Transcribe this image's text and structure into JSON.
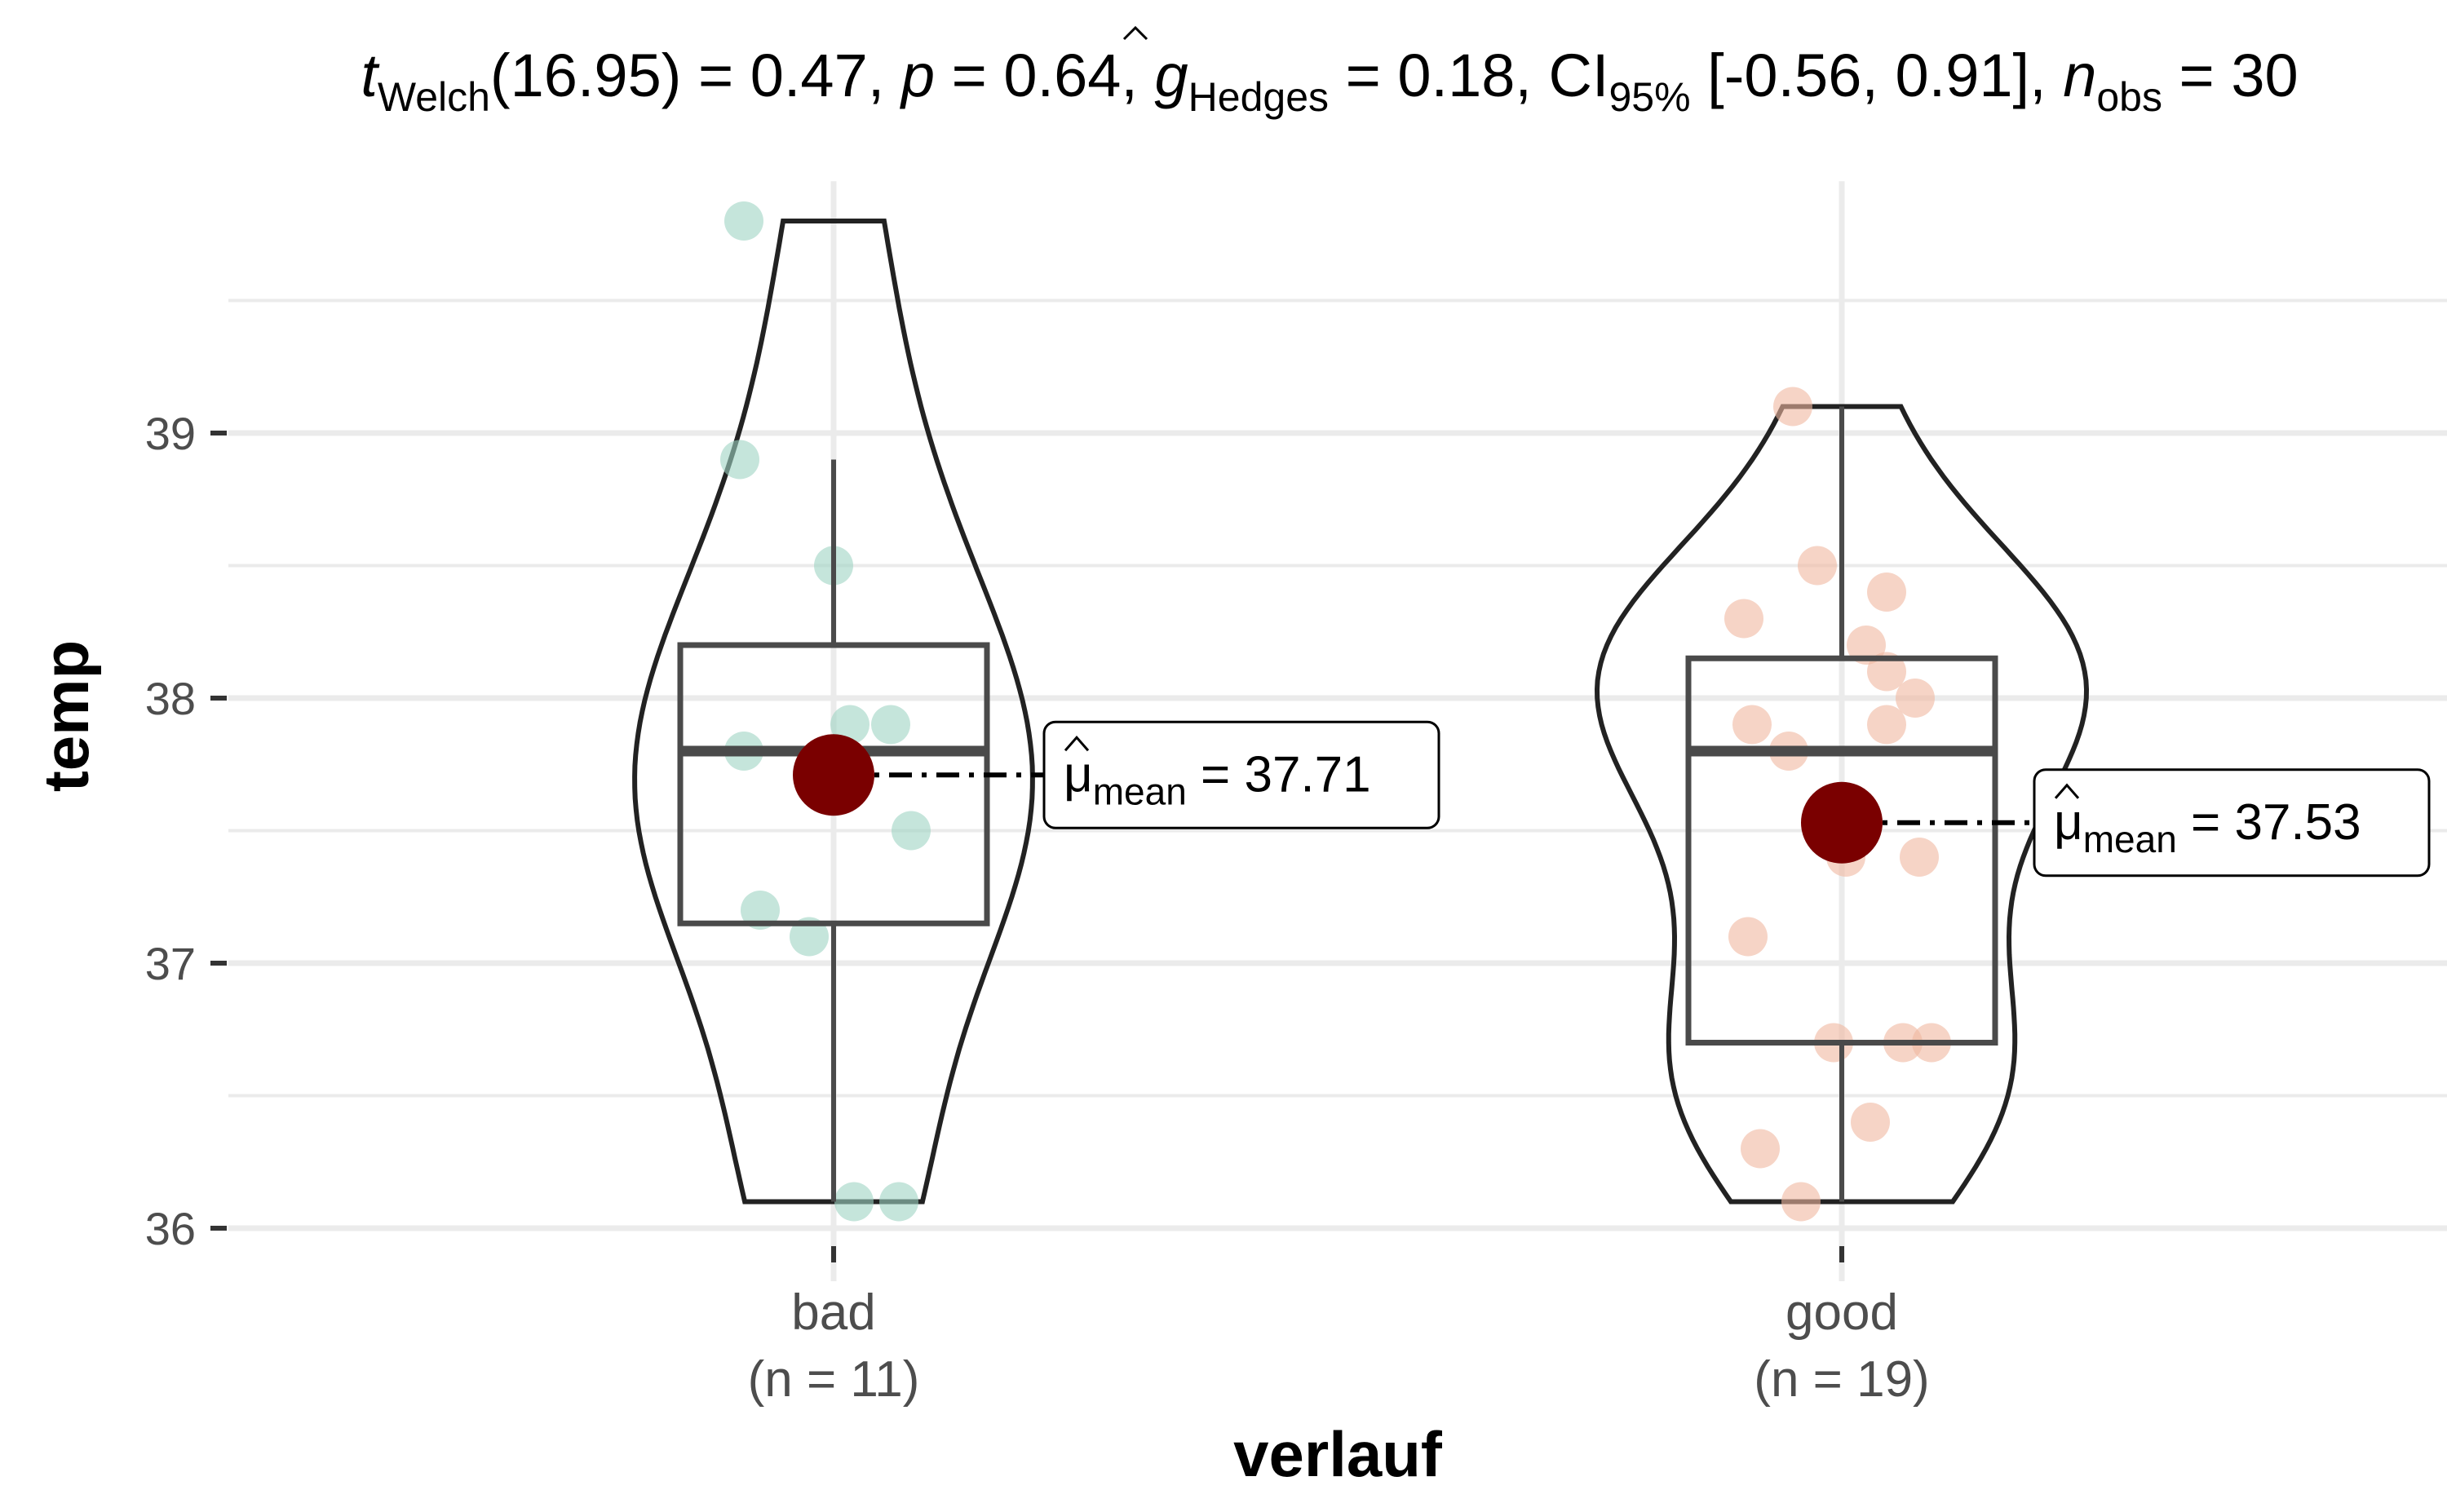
{
  "title_parts": {
    "t": "t",
    "t_sub": "Welch",
    "t_rest": "(16.95) = 0.47, ",
    "p": "p",
    "p_rest": " = 0.64, ",
    "g": "g",
    "g_sub": "Hedges",
    "g_rest": " = 0.18, CI",
    "ci_sub": "95%",
    "ci_rest": " [-0.56, 0.91], ",
    "n": "n",
    "n_sub": "obs",
    "n_rest": " = 30"
  },
  "chart_data": {
    "type": "violin-box-scatter",
    "xlabel": "verlauf",
    "ylabel": "temp",
    "ylim": [
      35.8,
      39.95
    ],
    "yticks": [
      36,
      37,
      38,
      39
    ],
    "grid": true,
    "groups": [
      {
        "name": "bad",
        "label_line1": "bad",
        "label_line2": "(n = 11)",
        "n": 11,
        "color": "#9fd3c3",
        "points": [
          39.8,
          38.9,
          38.5,
          37.9,
          37.9,
          37.8,
          37.5,
          37.2,
          37.1,
          36.1,
          36.1
        ],
        "box": {
          "min": 36.1,
          "q1": 37.15,
          "median": 37.8,
          "q3": 38.2,
          "max": 38.9
        },
        "violin_range": [
          36.1,
          39.8
        ],
        "mean": 37.71,
        "mean_label_prefix": "μ",
        "mean_label_sub": "mean",
        "mean_label_value": " = 37.71"
      },
      {
        "name": "good",
        "label_line1": "good",
        "label_line2": "(n = 19)",
        "n": 19,
        "color": "#f0b8a0",
        "points": [
          39.1,
          38.5,
          38.4,
          38.3,
          38.2,
          38.1,
          38.0,
          37.9,
          37.9,
          37.8,
          37.4,
          37.4,
          37.1,
          36.7,
          36.7,
          36.7,
          36.4,
          36.3,
          36.1
        ],
        "box": {
          "min": 36.1,
          "q1": 36.7,
          "median": 37.8,
          "q3": 38.15,
          "max": 39.1
        },
        "violin_range": [
          36.1,
          39.1
        ],
        "mean": 37.53,
        "mean_label_prefix": "μ",
        "mean_label_sub": "mean",
        "mean_label_value": " = 37.53"
      }
    ],
    "mean_point_color": "#7a0000"
  }
}
